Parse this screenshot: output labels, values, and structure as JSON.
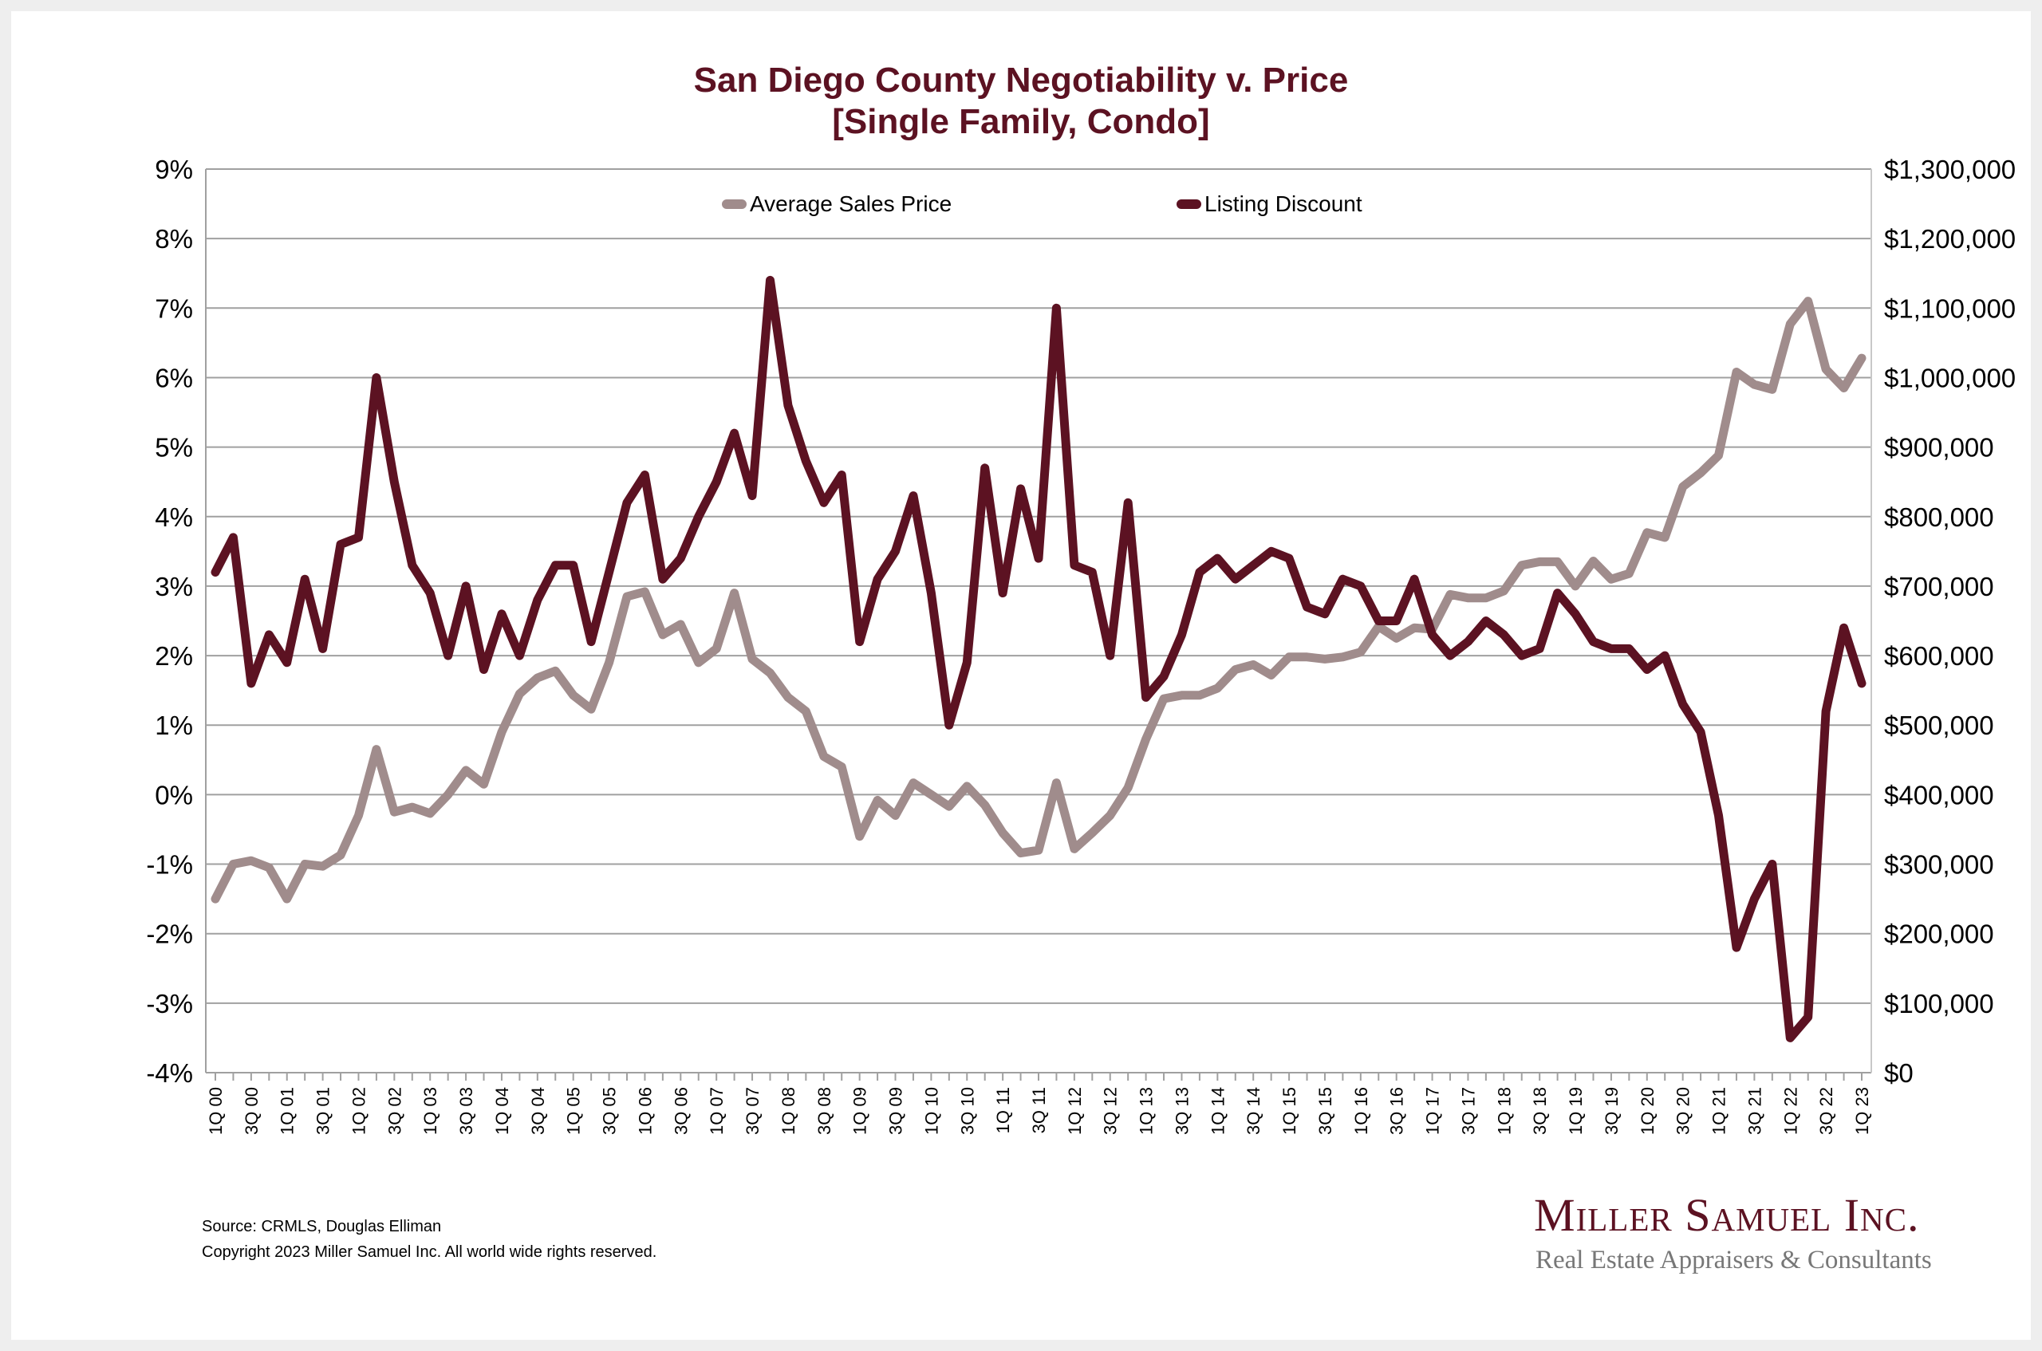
{
  "chart_data": {
    "type": "line",
    "title": "San Diego County Negotiability v. Price",
    "subtitle": "[Single Family, Condo]",
    "xlabel": "",
    "ylabel_left": "",
    "ylabel_right": "",
    "left_axis": {
      "min": -4,
      "max": 9,
      "step": 1,
      "ticks": [
        "9%",
        "8%",
        "7%",
        "6%",
        "5%",
        "4%",
        "3%",
        "2%",
        "1%",
        "0%",
        "-1%",
        "-2%",
        "-3%",
        "-4%"
      ]
    },
    "right_axis": {
      "min": 0,
      "max": 1300000,
      "step": 100000,
      "ticks": [
        "$1,300,000",
        "$1,200,000",
        "$1,100,000",
        "$1,000,000",
        "$900,000",
        "$800,000",
        "$700,000",
        "$600,000",
        "$500,000",
        "$400,000",
        "$300,000",
        "$200,000",
        "$100,000",
        "$0"
      ]
    },
    "grid": true,
    "legend_position": "top-center",
    "x": [
      "1Q 00",
      "2Q 00",
      "3Q 00",
      "4Q 00",
      "1Q 01",
      "2Q 01",
      "3Q 01",
      "4Q 01",
      "1Q 02",
      "2Q 02",
      "3Q 02",
      "4Q 02",
      "1Q 03",
      "2Q 03",
      "3Q 03",
      "4Q 03",
      "1Q 04",
      "2Q 04",
      "3Q 04",
      "4Q 04",
      "1Q 05",
      "2Q 05",
      "3Q 05",
      "4Q 05",
      "1Q 06",
      "2Q 06",
      "3Q 06",
      "4Q 06",
      "1Q 07",
      "2Q 07",
      "3Q 07",
      "4Q 07",
      "1Q 08",
      "2Q 08",
      "3Q 08",
      "4Q 08",
      "1Q 09",
      "2Q 09",
      "3Q 09",
      "4Q 09",
      "1Q 10",
      "2Q 10",
      "3Q 10",
      "4Q 10",
      "1Q 11",
      "2Q 11",
      "3Q 11",
      "4Q 11",
      "1Q 12",
      "2Q 12",
      "3Q 12",
      "4Q 12",
      "1Q 13",
      "2Q 13",
      "3Q 13",
      "4Q 13",
      "1Q 14",
      "2Q 14",
      "3Q 14",
      "4Q 14",
      "1Q 15",
      "2Q 15",
      "3Q 15",
      "4Q 15",
      "1Q 16",
      "2Q 16",
      "3Q 16",
      "4Q 16",
      "1Q 17",
      "2Q 17",
      "3Q 17",
      "4Q 17",
      "1Q 18",
      "2Q 18",
      "3Q 18",
      "4Q 18",
      "1Q 19",
      "2Q 19",
      "3Q 19",
      "4Q 19",
      "1Q 20",
      "2Q 20",
      "3Q 20",
      "4Q 20",
      "1Q 21",
      "2Q 21",
      "3Q 21",
      "4Q 21",
      "1Q 22",
      "2Q 22",
      "3Q 22",
      "4Q 22",
      "1Q 23"
    ],
    "x_tick_labels_shown_every": 2,
    "series": [
      {
        "name": "Average Sales Price",
        "axis": "right",
        "color": "#a08c8c",
        "values": [
          250000,
          300000,
          305000,
          295000,
          250000,
          300000,
          297000,
          313000,
          370000,
          465000,
          375000,
          382000,
          373000,
          400000,
          435000,
          415000,
          490000,
          545000,
          568000,
          578000,
          543000,
          523000,
          590000,
          685000,
          692000,
          630000,
          645000,
          590000,
          610000,
          690000,
          595000,
          575000,
          540000,
          520000,
          455000,
          440000,
          340000,
          392000,
          370000,
          417000,
          400000,
          383000,
          412000,
          385000,
          345000,
          316000,
          320000,
          417000,
          322000,
          345000,
          370000,
          410000,
          480000,
          538000,
          543000,
          543000,
          553000,
          580000,
          587000,
          572000,
          598000,
          598000,
          595000,
          598000,
          605000,
          642000,
          625000,
          640000,
          638000,
          688000,
          683000,
          683000,
          693000,
          730000,
          735000,
          735000,
          700000,
          736000,
          710000,
          718000,
          777000,
          770000,
          843000,
          863000,
          888000,
          1008000,
          990000,
          983000,
          1077000,
          1110000,
          1012000,
          985000,
          1028000
        ]
      },
      {
        "name": "Listing Discount",
        "axis": "left",
        "color": "#5c1222",
        "values": [
          3.2,
          3.7,
          1.6,
          2.3,
          1.9,
          3.1,
          2.1,
          3.6,
          3.7,
          6.0,
          4.5,
          3.3,
          2.9,
          2.0,
          3.0,
          1.8,
          2.6,
          2.0,
          2.8,
          3.3,
          3.3,
          2.2,
          3.2,
          4.2,
          4.6,
          3.1,
          3.4,
          4.0,
          4.5,
          5.2,
          4.3,
          7.4,
          5.6,
          4.8,
          4.2,
          4.6,
          2.2,
          3.1,
          3.5,
          4.3,
          2.9,
          1.0,
          1.9,
          4.7,
          2.9,
          4.4,
          3.4,
          7.0,
          3.3,
          3.2,
          2.0,
          4.2,
          1.4,
          1.7,
          2.3,
          3.2,
          3.4,
          3.1,
          3.3,
          3.5,
          3.4,
          2.7,
          2.6,
          3.1,
          3.0,
          2.5,
          2.5,
          3.1,
          2.3,
          2.0,
          2.2,
          2.5,
          2.3,
          2.0,
          2.1,
          2.9,
          2.6,
          2.2,
          2.1,
          2.1,
          1.8,
          2.0,
          1.3,
          0.9,
          -0.3,
          -2.2,
          -1.5,
          -1.0,
          -3.5,
          -3.2,
          1.2,
          2.4,
          1.6
        ]
      }
    ]
  },
  "footer": {
    "source": "Source: CRMLS, Douglas Elliman",
    "copyright": "Copyright 2023 Miller Samuel Inc.  All world wide rights reserved."
  },
  "logo": {
    "name": "Miller Samuel Inc.",
    "tagline": "Real Estate Appraisers & Consultants"
  }
}
